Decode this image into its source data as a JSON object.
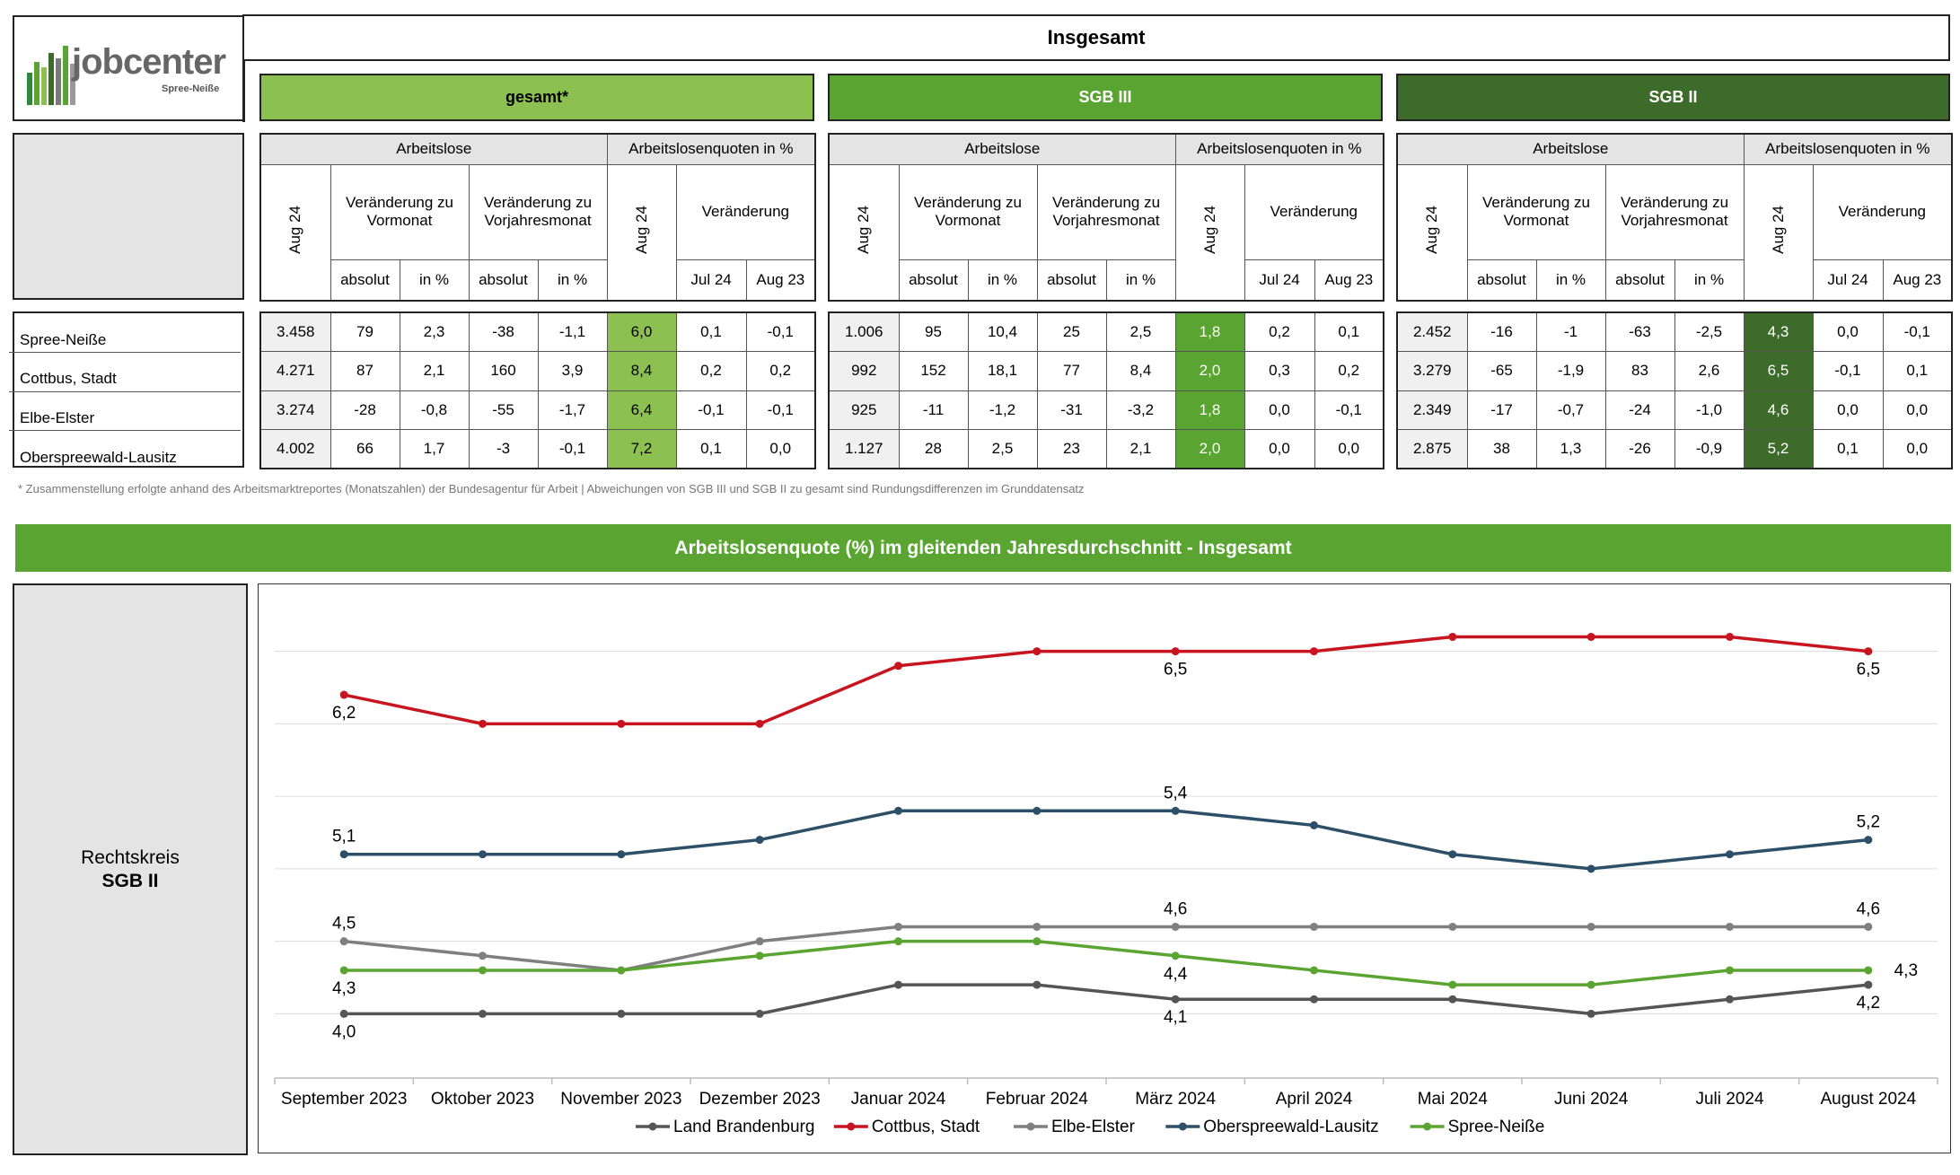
{
  "logo": {
    "name": "jobcenter",
    "sub": "Spree-Neiße"
  },
  "title": "Insgesamt",
  "groups": [
    {
      "label": "gesamt*",
      "quote_class": "q1"
    },
    {
      "label": "SGB III",
      "quote_class": "q2"
    },
    {
      "label": "SGB II",
      "quote_class": "q3"
    }
  ],
  "headers": {
    "arbeitslose": "Arbeitslose",
    "quoten": "Arbeitslosenquoten in %",
    "aug24": "Aug 24",
    "vormonat": "Veränderung zu Vormonat",
    "vorjahr": "Veränderung zu Vorjahresmonat",
    "veraenderung": "Veränderung",
    "absolut": "absolut",
    "inpct": "in %",
    "jul24": "Jul 24",
    "aug23": "Aug 23"
  },
  "rows": [
    "Spree-Neiße",
    "Cottbus, Stadt",
    "Elbe-Elster",
    "Oberspreewald-Lausitz"
  ],
  "table": [
    [
      [
        "3.458",
        "79",
        "2,3",
        "-38",
        "-1,1",
        "6,0",
        "0,1",
        "-0,1"
      ],
      [
        "4.271",
        "87",
        "2,1",
        "160",
        "3,9",
        "8,4",
        "0,2",
        "0,2"
      ],
      [
        "3.274",
        "-28",
        "-0,8",
        "-55",
        "-1,7",
        "6,4",
        "-0,1",
        "-0,1"
      ],
      [
        "4.002",
        "66",
        "1,7",
        "-3",
        "-0,1",
        "7,2",
        "0,1",
        "0,0"
      ]
    ],
    [
      [
        "1.006",
        "95",
        "10,4",
        "25",
        "2,5",
        "1,8",
        "0,2",
        "0,1"
      ],
      [
        "992",
        "152",
        "18,1",
        "77",
        "8,4",
        "2,0",
        "0,3",
        "0,2"
      ],
      [
        "925",
        "-11",
        "-1,2",
        "-31",
        "-3,2",
        "1,8",
        "0,0",
        "-0,1"
      ],
      [
        "1.127",
        "28",
        "2,5",
        "23",
        "2,1",
        "2,0",
        "0,0",
        "0,0"
      ]
    ],
    [
      [
        "2.452",
        "-16",
        "-1",
        "-63",
        "-2,5",
        "4,3",
        "0,0",
        "-0,1"
      ],
      [
        "3.279",
        "-65",
        "-1,9",
        "83",
        "2,6",
        "6,5",
        "-0,1",
        "0,1"
      ],
      [
        "2.349",
        "-17",
        "-0,7",
        "-24",
        "-1,0",
        "4,6",
        "0,0",
        "0,0"
      ],
      [
        "2.875",
        "38",
        "1,3",
        "-26",
        "-0,9",
        "5,2",
        "0,1",
        "0,0"
      ]
    ]
  ],
  "footnote": "* Zusammenstellung erfolgte anhand des Arbeitsmarktreportes (Monatszahlen) der Bundesagentur für Arbeit | Abweichungen von SGB III und SGB II zu gesamt sind Rundungsdifferenzen im Grunddatensatz",
  "chart_title": "Arbeitslosenquote (%) im gleitenden Jahresdurchschnitt - Insgesamt",
  "side_label": {
    "line1": "Rechtskreis",
    "line2": "SGB II"
  },
  "chart_data": {
    "type": "line",
    "categories": [
      "September 2023",
      "Oktober 2023",
      "November 2023",
      "Dezember 2023",
      "Januar 2024",
      "Februar 2024",
      "März 2024",
      "April 2024",
      "Mai 2024",
      "Juni 2024",
      "Juli 2024",
      "August 2024"
    ],
    "series": [
      {
        "name": "Land Brandenburg",
        "color": "#555555",
        "values": [
          4.0,
          4.0,
          4.0,
          4.0,
          4.2,
          4.2,
          4.1,
          4.1,
          4.1,
          4.0,
          4.1,
          4.2
        ]
      },
      {
        "name": "Cottbus, Stadt",
        "color": "#c8141e",
        "values": [
          6.2,
          6.0,
          6.0,
          6.0,
          6.4,
          6.5,
          6.5,
          6.5,
          6.6,
          6.6,
          6.6,
          6.5
        ]
      },
      {
        "name": "Elbe-Elster",
        "color": "#7f7f7f",
        "values": [
          4.5,
          4.4,
          4.3,
          4.5,
          4.6,
          4.6,
          4.6,
          4.6,
          4.6,
          4.6,
          4.6,
          4.6
        ]
      },
      {
        "name": "Oberspreewald-Lausitz",
        "color": "#2d5068",
        "values": [
          5.1,
          5.1,
          5.1,
          5.2,
          5.4,
          5.4,
          5.4,
          5.3,
          5.1,
          5.0,
          5.1,
          5.2
        ]
      },
      {
        "name": "Spree-Neiße",
        "color": "#5aa532",
        "values": [
          4.3,
          4.3,
          4.3,
          4.4,
          4.5,
          4.5,
          4.4,
          4.3,
          4.2,
          4.2,
          4.3,
          4.3
        ]
      }
    ],
    "data_labels": [
      {
        "series": 1,
        "index": 0,
        "text": "6,2"
      },
      {
        "series": 1,
        "index": 6,
        "text": "6,5"
      },
      {
        "series": 1,
        "index": 11,
        "text": "6,5"
      },
      {
        "series": 3,
        "index": 0,
        "text": "5,1"
      },
      {
        "series": 3,
        "index": 6,
        "text": "5,4"
      },
      {
        "series": 3,
        "index": 11,
        "text": "5,2"
      },
      {
        "series": 2,
        "index": 0,
        "text": "4,5"
      },
      {
        "series": 2,
        "index": 6,
        "text": "4,6"
      },
      {
        "series": 2,
        "index": 11,
        "text": "4,6"
      },
      {
        "series": 4,
        "index": 0,
        "text": "4,3"
      },
      {
        "series": 4,
        "index": 6,
        "text": "4,4"
      },
      {
        "series": 4,
        "index": 11,
        "text": "4,3"
      },
      {
        "series": 0,
        "index": 0,
        "text": "4,0"
      },
      {
        "series": 0,
        "index": 6,
        "text": "4,1"
      },
      {
        "series": 0,
        "index": 11,
        "text": "4,2"
      }
    ],
    "ylim": [
      3.6,
      6.9
    ],
    "grid": true,
    "legend": "bottom"
  }
}
